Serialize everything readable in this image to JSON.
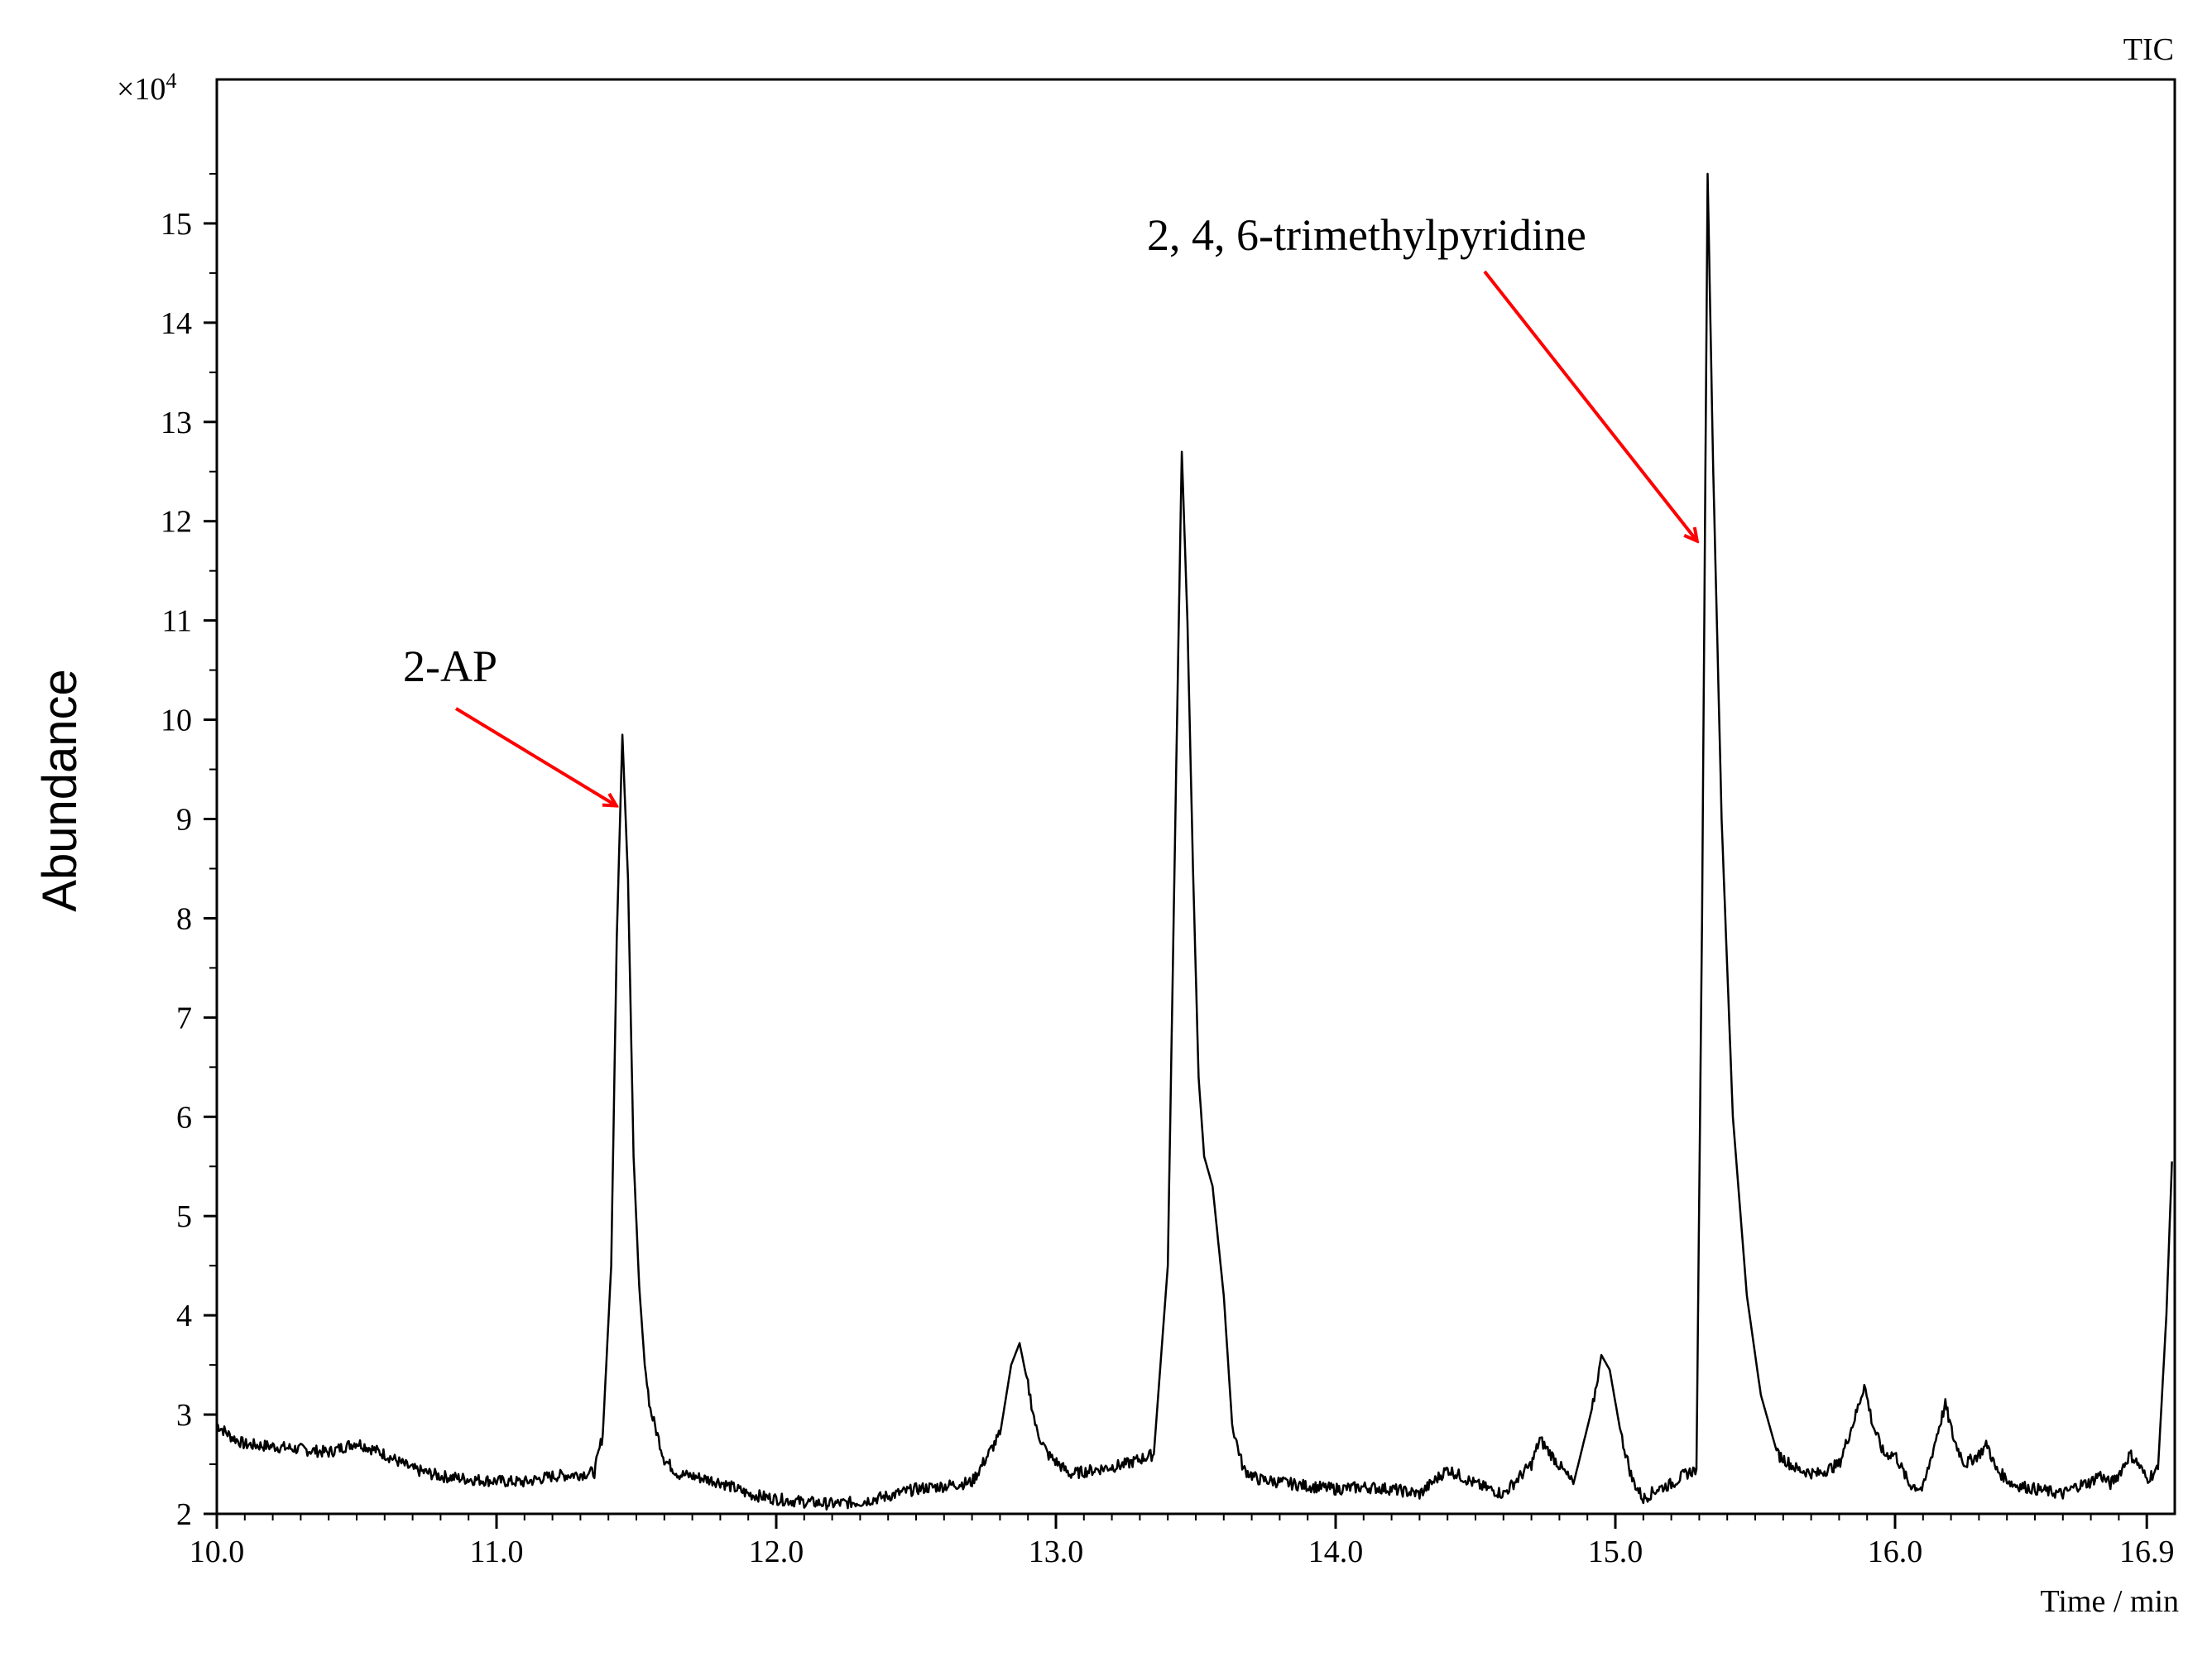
{
  "chart_data": {
    "type": "line",
    "title": "",
    "trace_label": "TIC",
    "xlabel": "Time / min",
    "ylabel": "Abundance",
    "y_multiplier": "×10",
    "y_multiplier_exponent": "4",
    "xlim": [
      10.0,
      17.0
    ],
    "ylim": [
      2,
      16
    ],
    "x_ticks": [
      10.0,
      11.0,
      12.0,
      13.0,
      14.0,
      15.0,
      16.0,
      16.9
    ],
    "x_tick_labels": [
      "10.0",
      "11.0",
      "12.0",
      "13.0",
      "14.0",
      "15.0",
      "16.0",
      "16.9"
    ],
    "y_ticks": [
      2,
      3,
      4,
      5,
      6,
      7,
      8,
      9,
      10,
      11,
      12,
      13,
      14,
      15
    ],
    "y_tick_labels": [
      "2",
      "3",
      "4",
      "5",
      "6",
      "7",
      "8",
      "9",
      "10",
      "11",
      "12",
      "13",
      "14",
      "15"
    ],
    "grid": false,
    "series": [
      {
        "x": [
          10.0,
          10.05,
          10.1,
          10.2,
          10.3,
          10.4,
          10.5,
          10.6,
          10.7,
          10.8,
          10.9,
          11.0,
          11.1,
          11.2,
          11.3,
          11.35,
          11.38,
          11.41,
          11.43,
          11.45,
          11.47,
          11.49,
          11.51,
          11.53,
          11.55,
          11.58,
          11.6,
          11.65,
          11.7,
          11.8,
          11.9,
          12.0,
          12.1,
          12.2,
          12.3,
          12.4,
          12.5,
          12.6,
          12.7,
          12.8,
          12.84,
          12.87,
          12.9,
          12.93,
          12.97,
          13.05,
          13.15,
          13.25,
          13.35,
          13.4,
          13.43,
          13.45,
          13.47,
          13.49,
          13.51,
          13.53,
          13.56,
          13.6,
          13.63,
          13.67,
          13.72,
          13.8,
          13.9,
          14.0,
          14.1,
          14.2,
          14.3,
          14.4,
          14.5,
          14.6,
          14.7,
          14.73,
          14.77,
          14.85,
          14.92,
          14.95,
          14.98,
          15.02,
          15.06,
          15.1,
          15.15,
          15.2,
          15.25,
          15.29,
          15.31,
          15.33,
          15.35,
          15.38,
          15.42,
          15.47,
          15.52,
          15.58,
          15.65,
          15.72,
          15.8,
          15.86,
          15.89,
          15.92,
          15.96,
          16.0,
          16.05,
          16.1,
          16.15,
          16.18,
          16.21,
          16.25,
          16.3,
          16.33,
          16.36,
          16.42,
          16.5,
          16.6,
          16.65,
          16.7,
          16.73,
          16.77,
          16.8,
          16.84,
          16.87,
          16.9,
          16.94,
          16.97,
          16.99
        ],
        "y": [
          2.9,
          2.78,
          2.7,
          2.68,
          2.65,
          2.62,
          2.72,
          2.6,
          2.45,
          2.38,
          2.35,
          2.33,
          2.32,
          2.38,
          2.4,
          2.42,
          2.8,
          4.5,
          7.8,
          9.85,
          8.4,
          5.6,
          4.3,
          3.5,
          3.05,
          2.75,
          2.55,
          2.4,
          2.38,
          2.32,
          2.2,
          2.15,
          2.12,
          2.1,
          2.12,
          2.18,
          2.25,
          2.28,
          2.32,
          2.8,
          3.5,
          3.72,
          3.3,
          2.85,
          2.6,
          2.4,
          2.45,
          2.5,
          2.6,
          4.5,
          9.5,
          12.7,
          11.0,
          8.5,
          6.4,
          5.6,
          5.3,
          4.2,
          2.9,
          2.45,
          2.35,
          2.32,
          2.28,
          2.25,
          2.27,
          2.25,
          2.2,
          2.45,
          2.3,
          2.2,
          2.5,
          2.75,
          2.6,
          2.3,
          3.1,
          3.6,
          3.45,
          2.8,
          2.35,
          2.15,
          2.25,
          2.3,
          2.4,
          2.45,
          8.0,
          15.5,
          12.5,
          9.0,
          6.0,
          4.2,
          3.2,
          2.6,
          2.45,
          2.4,
          2.5,
          3.0,
          3.3,
          2.9,
          2.6,
          2.6,
          2.3,
          2.25,
          2.8,
          3.1,
          2.75,
          2.5,
          2.6,
          2.7,
          2.45,
          2.3,
          2.25,
          2.2,
          2.28,
          2.32,
          2.4,
          2.3,
          2.4,
          2.6,
          2.5,
          2.35,
          2.45,
          4.0,
          5.55
        ]
      }
    ],
    "annotations": [
      {
        "text": "2-AP",
        "x": 11.47,
        "y": 9.1,
        "color": "#ff0000"
      },
      {
        "text": "2, 4, 6-trimethylpyridine",
        "x": 15.31,
        "y": 11.8,
        "color": "#ff0000"
      }
    ],
    "line_color": "#000000",
    "annotation_color": "#ff0000"
  }
}
